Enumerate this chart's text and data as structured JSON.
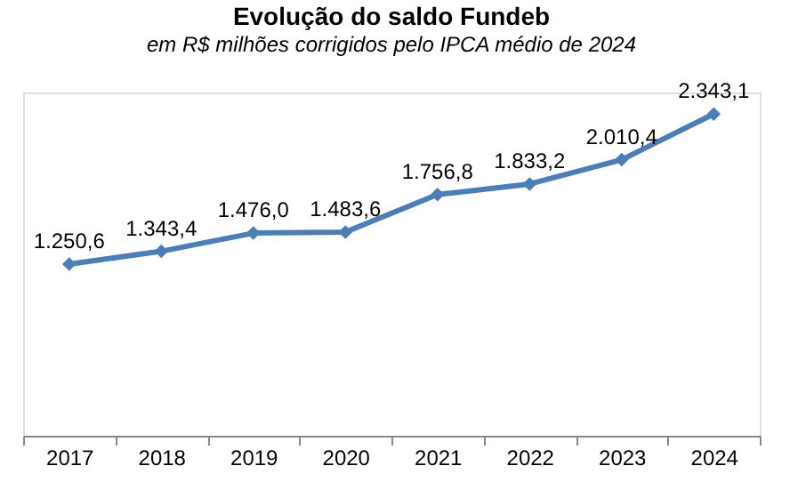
{
  "chart_data": {
    "type": "line",
    "title": "Evolução do saldo Fundeb",
    "subtitle": "em R$ milhões corrigidos pelo IPCA médio de 2024",
    "categories": [
      "2017",
      "2018",
      "2019",
      "2020",
      "2021",
      "2022",
      "2023",
      "2024"
    ],
    "series": [
      {
        "color": "#4a7ebb",
        "values": [
          1250.6,
          1343.4,
          1476.0,
          1483.6,
          1756.8,
          1833.2,
          2010.4,
          2343.1
        ],
        "value_labels": [
          "1.250,6",
          "1.343,4",
          "1.476,0",
          "1.483,6",
          "1.756,8",
          "1.833,2",
          "2.010,4",
          "2.343,1"
        ]
      }
    ],
    "ylim": [
      0,
      2500
    ],
    "tick_labels": "x",
    "marker": "diamond",
    "line_style": "solid",
    "grid": false
  }
}
